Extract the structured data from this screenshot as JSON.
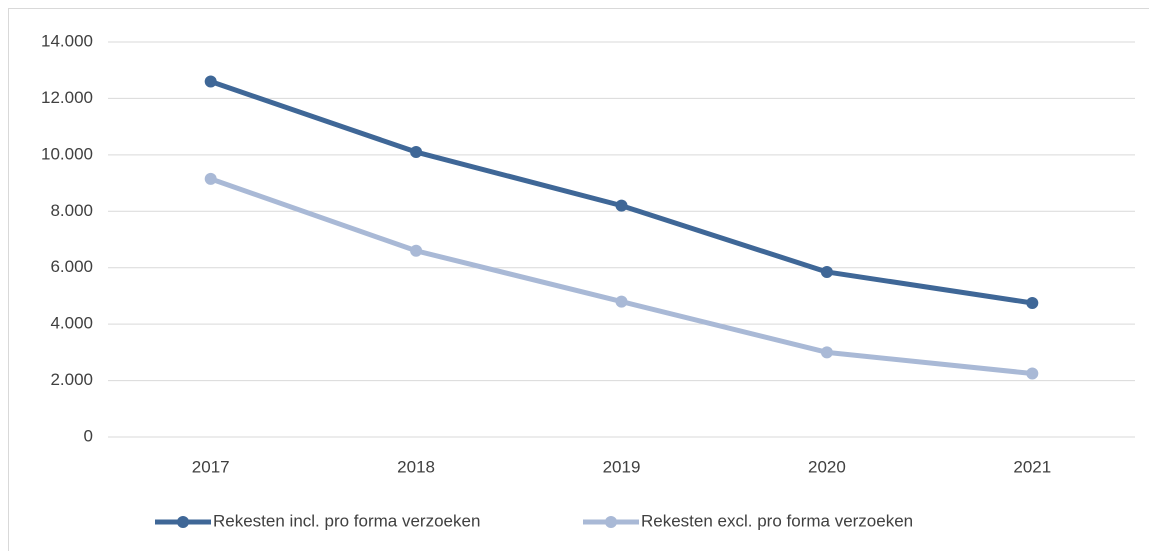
{
  "chart_data": {
    "type": "line",
    "categories": [
      "2017",
      "2018",
      "2019",
      "2020",
      "2021"
    ],
    "series": [
      {
        "name": "Rekesten incl. pro forma verzoeken",
        "color": "#3f6797",
        "values": [
          12600,
          10100,
          8200,
          5850,
          4750
        ]
      },
      {
        "name": "Rekesten excl. pro forma verzoeken",
        "color": "#a9b9d6",
        "values": [
          9150,
          6600,
          4800,
          3000,
          2250
        ]
      }
    ],
    "ylim": [
      0,
      14000
    ],
    "yticks": [
      0,
      {
        "value": 2000,
        "label": "2.000"
      },
      {
        "value": 4000,
        "label": "4.000"
      },
      {
        "value": 6000,
        "label": "6.000"
      },
      {
        "value": 8000,
        "label": "8.000"
      },
      {
        "value": 10000,
        "label": "10.000"
      },
      {
        "value": 12000,
        "label": "12.000"
      },
      {
        "value": 14000,
        "label": "14.000"
      }
    ],
    "grid": true,
    "legend": "bottom"
  }
}
